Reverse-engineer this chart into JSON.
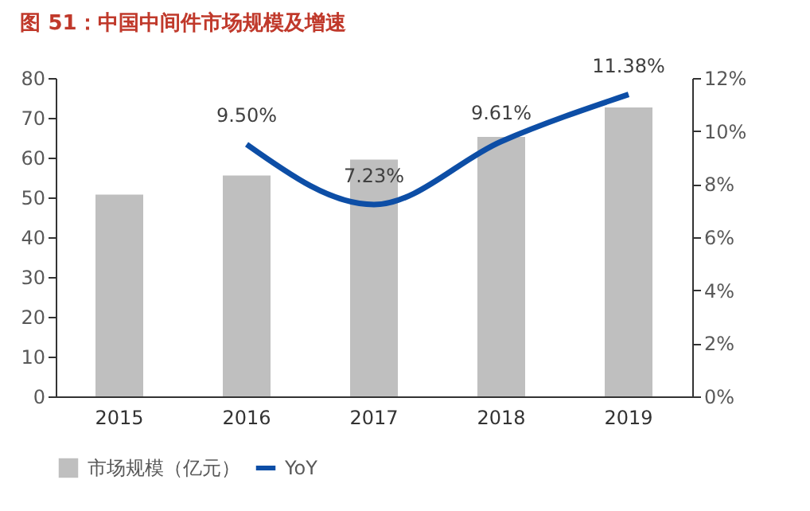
{
  "chart_data": {
    "type": "bar",
    "title": "图 51：中国中间件市场规模及增速",
    "categories": [
      "2015",
      "2016",
      "2017",
      "2018",
      "2019"
    ],
    "series": [
      {
        "name": "市场规模（亿元）",
        "color": "#bfbfbf",
        "values": [
          50.7,
          55.5,
          59.5,
          65.2,
          72.6
        ]
      },
      {
        "name": "YoY",
        "type": "line",
        "axis": "y2",
        "color": "#0d4ea6",
        "values": [
          null,
          9.5,
          7.23,
          9.61,
          11.38
        ],
        "value_labels": [
          null,
          "9.50%",
          "7.23%",
          "9.61%",
          "11.38%"
        ]
      }
    ],
    "ylim": [
      0,
      80
    ],
    "yticks": [
      0,
      10,
      20,
      30,
      40,
      50,
      60,
      70,
      80
    ],
    "y2lim": [
      0,
      12
    ],
    "y2ticks": [
      {
        "value": 0,
        "label": "0%"
      },
      {
        "value": 2,
        "label": "2%"
      },
      {
        "value": 4,
        "label": "4%"
      },
      {
        "value": 6,
        "label": "6%"
      },
      {
        "value": 8,
        "label": "8%"
      },
      {
        "value": 10,
        "label": "10%"
      },
      {
        "value": 12,
        "label": "12%"
      }
    ],
    "grid": false,
    "legend": "bottom",
    "marker": "none"
  }
}
